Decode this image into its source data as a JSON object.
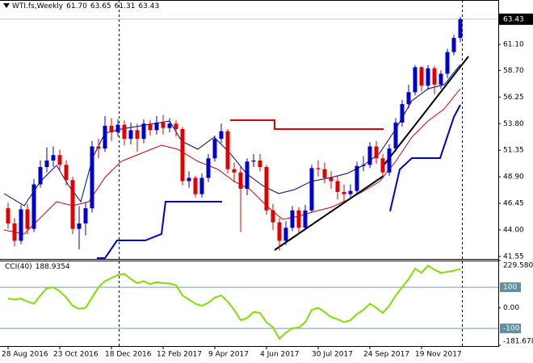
{
  "chart_data": {
    "type": "candlestick",
    "title": "WTI.fs,Weekly",
    "last_bar_labels": [
      "61.70",
      "63.65",
      "61.31",
      "63.43"
    ],
    "categories": [
      "28 Aug 2016",
      null,
      null,
      null,
      null,
      null,
      null,
      null,
      "23 Oct 2016",
      null,
      null,
      null,
      null,
      null,
      null,
      null,
      "18 Dec 2016",
      null,
      null,
      null,
      null,
      null,
      null,
      null,
      "12 Feb 2017",
      null,
      null,
      null,
      null,
      null,
      null,
      null,
      "9 Apr 2017",
      null,
      null,
      null,
      null,
      null,
      null,
      null,
      "4 Jun 2017",
      null,
      null,
      null,
      null,
      null,
      null,
      null,
      "30 Jul 2017",
      null,
      null,
      null,
      null,
      null,
      null,
      null,
      "24 Sep 2017",
      null,
      null,
      null,
      null,
      null,
      null,
      null,
      "19 Nov 2017",
      null,
      null,
      null,
      null,
      null,
      null
    ],
    "open": [
      46.0,
      44.6,
      43.0,
      45.9,
      44.1,
      48.2,
      49.8,
      50.4,
      50.9,
      50.0,
      48.6,
      44.1,
      44.6,
      46.0,
      51.7,
      51.5,
      53.6,
      53.0,
      53.7,
      52.4,
      53.2,
      52.4,
      53.8,
      53.2,
      53.9,
      53.4,
      53.8,
      53.3,
      48.5,
      48.8,
      47.3,
      48.8,
      50.6,
      52.4,
      53.1,
      49.6,
      49.3,
      47.8,
      50.3,
      50.4,
      49.8,
      45.8,
      44.7,
      43.0,
      44.2,
      45.8,
      44.2,
      45.8,
      49.7,
      49.6,
      48.8,
      48.5,
      47.5,
      47.3,
      47.6,
      49.9,
      50.0,
      51.7,
      50.6,
      49.3,
      51.5,
      53.9,
      55.6,
      56.7,
      59.0,
      57.3,
      58.9,
      57.4,
      58.4,
      60.4,
      61.7
    ],
    "high": [
      46.5,
      45.1,
      46.3,
      46.4,
      48.7,
      50.4,
      51.6,
      51.7,
      51.4,
      50.4,
      48.9,
      46.2,
      46.5,
      52.2,
      52.4,
      54.5,
      54.3,
      54.2,
      54.1,
      53.9,
      53.8,
      54.2,
      54.1,
      54.5,
      54.6,
      54.3,
      54.1,
      53.5,
      49.4,
      49.0,
      49.2,
      51.0,
      52.7,
      53.8,
      53.3,
      50.2,
      49.8,
      50.6,
      51.0,
      51.0,
      50.0,
      46.4,
      45.1,
      44.8,
      46.2,
      46.1,
      46.3,
      50.0,
      50.4,
      50.2,
      49.4,
      49.0,
      48.2,
      48.2,
      50.3,
      50.8,
      52.1,
      52.2,
      51.0,
      51.9,
      54.3,
      56.0,
      57.4,
      59.2,
      59.1,
      59.2,
      59.1,
      58.7,
      60.7,
      62.0,
      63.65
    ],
    "low": [
      44.1,
      42.5,
      42.7,
      43.6,
      43.8,
      47.9,
      49.3,
      49.8,
      49.5,
      48.1,
      43.6,
      42.2,
      43.5,
      45.6,
      50.6,
      51.2,
      52.2,
      52.6,
      51.8,
      51.9,
      51.2,
      52.0,
      52.7,
      52.8,
      52.8,
      53.0,
      52.6,
      48.1,
      47.9,
      47.0,
      47.0,
      48.4,
      50.3,
      52.0,
      49.2,
      48.4,
      43.8,
      47.2,
      49.8,
      49.4,
      45.4,
      44.0,
      42.1,
      42.6,
      43.9,
      43.6,
      44.0,
      45.6,
      48.9,
      48.3,
      47.8,
      46.8,
      46.6,
      47.0,
      47.3,
      49.4,
      49.7,
      50.1,
      48.8,
      49.0,
      51.2,
      53.5,
      55.2,
      56.4,
      56.8,
      56.9,
      56.5,
      57.0,
      58.0,
      60.1,
      61.31
    ],
    "close": [
      44.6,
      43.0,
      45.9,
      44.1,
      48.2,
      49.8,
      50.4,
      50.9,
      50.0,
      48.6,
      44.1,
      44.6,
      46.0,
      51.7,
      51.5,
      53.6,
      53.0,
      53.7,
      52.4,
      53.2,
      52.4,
      53.8,
      53.2,
      53.9,
      53.4,
      53.8,
      53.3,
      48.5,
      48.8,
      47.3,
      48.8,
      50.6,
      52.4,
      53.1,
      49.6,
      49.3,
      47.8,
      50.3,
      50.4,
      49.8,
      45.8,
      44.7,
      43.0,
      44.2,
      45.8,
      44.2,
      45.8,
      49.7,
      49.6,
      48.8,
      48.5,
      47.5,
      47.3,
      47.6,
      49.9,
      50.0,
      51.7,
      50.6,
      49.3,
      51.5,
      53.9,
      55.6,
      56.7,
      59.0,
      57.3,
      58.9,
      57.4,
      58.4,
      60.4,
      61.7,
      63.43
    ],
    "up_color": "#0000cc",
    "down_color": "#e00000",
    "ylim": [
      41.4,
      65.2
    ],
    "yticks": [
      {
        "value": 61.1,
        "label": "61.10"
      },
      {
        "value": 58.7,
        "label": "58.70"
      },
      56.25,
      {
        "value": 53.8,
        "label": "53.80"
      },
      51.35,
      {
        "value": 48.9,
        "label": "48.90"
      },
      46.45,
      {
        "value": 44.0,
        "label": "44.00"
      },
      41.55
    ],
    "series": [
      {
        "name": "CCI(40)",
        "color": "#7fe000",
        "axis": "y2",
        "values": [
          45,
          40,
          45,
          30,
          20,
          60,
          95,
          100,
          80,
          50,
          10,
          -5,
          0,
          50,
          100,
          130,
          145,
          160,
          165,
          140,
          120,
          130,
          115,
          125,
          120,
          118,
          110,
          60,
          40,
          20,
          10,
          25,
          50,
          60,
          30,
          -10,
          -60,
          -50,
          -20,
          -25,
          -70,
          -95,
          -150,
          -120,
          -100,
          -95,
          -70,
          -10,
          0,
          -20,
          -45,
          -55,
          -70,
          -60,
          -30,
          -10,
          20,
          0,
          -25,
          10,
          60,
          100,
          140,
          190,
          170,
          205,
          185,
          170,
          175,
          180,
          188.9354
        ]
      }
    ],
    "y2lim": [
      -181.678,
      229.58
    ],
    "y2ticks": [
      {
        "value": 229.58,
        "label": "229.580"
      },
      100,
      {
        "value": 0,
        "label": "0.00"
      },
      -100,
      {
        "value": -181.678,
        "label": "-181.678"
      }
    ]
  }
}
